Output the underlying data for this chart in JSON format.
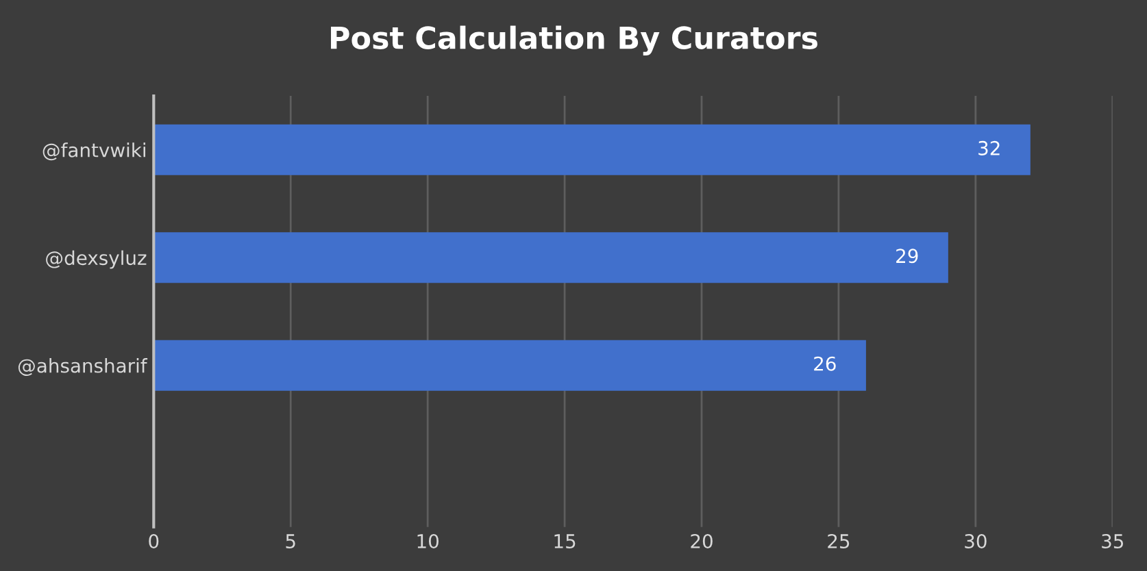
{
  "chart_data": {
    "type": "bar",
    "orientation": "horizontal",
    "title": "Post Calculation By Curators",
    "categories": [
      "@fantvwiki",
      "@dexsyluz",
      "@ahsansharif",
      null
    ],
    "values": [
      32,
      29,
      26,
      null
    ],
    "color": "#4170cc",
    "xlim": [
      0,
      35
    ],
    "xticks": [
      0,
      5,
      10,
      15,
      20,
      25,
      30,
      35
    ],
    "grid": "x",
    "data_labels": true
  }
}
